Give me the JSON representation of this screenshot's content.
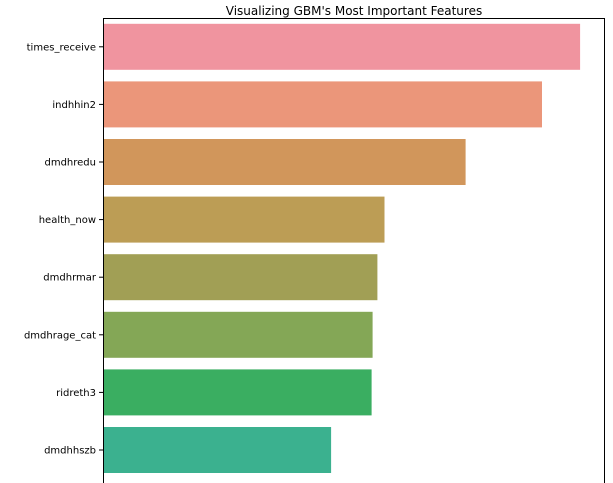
{
  "chart_data": {
    "type": "bar",
    "orientation": "horizontal",
    "title": "Visualizing GBM's Most Important Features",
    "xlabel": "",
    "ylabel": "",
    "categories": [
      "times_receive",
      "indhhin2",
      "dmdhredu",
      "health_now",
      "dmdhrmar",
      "dmdhrage_cat",
      "ridreth3",
      "dmdhhszb"
    ],
    "values": [
      1.0,
      0.92,
      0.76,
      0.59,
      0.575,
      0.565,
      0.563,
      0.478
    ],
    "xlim": [
      0,
      1.05
    ],
    "grid": false,
    "colors": [
      "#f0949f",
      "#eb967a",
      "#d1965b",
      "#bc9d55",
      "#a19f55",
      "#84a756",
      "#3aae61",
      "#3bb18f"
    ]
  }
}
